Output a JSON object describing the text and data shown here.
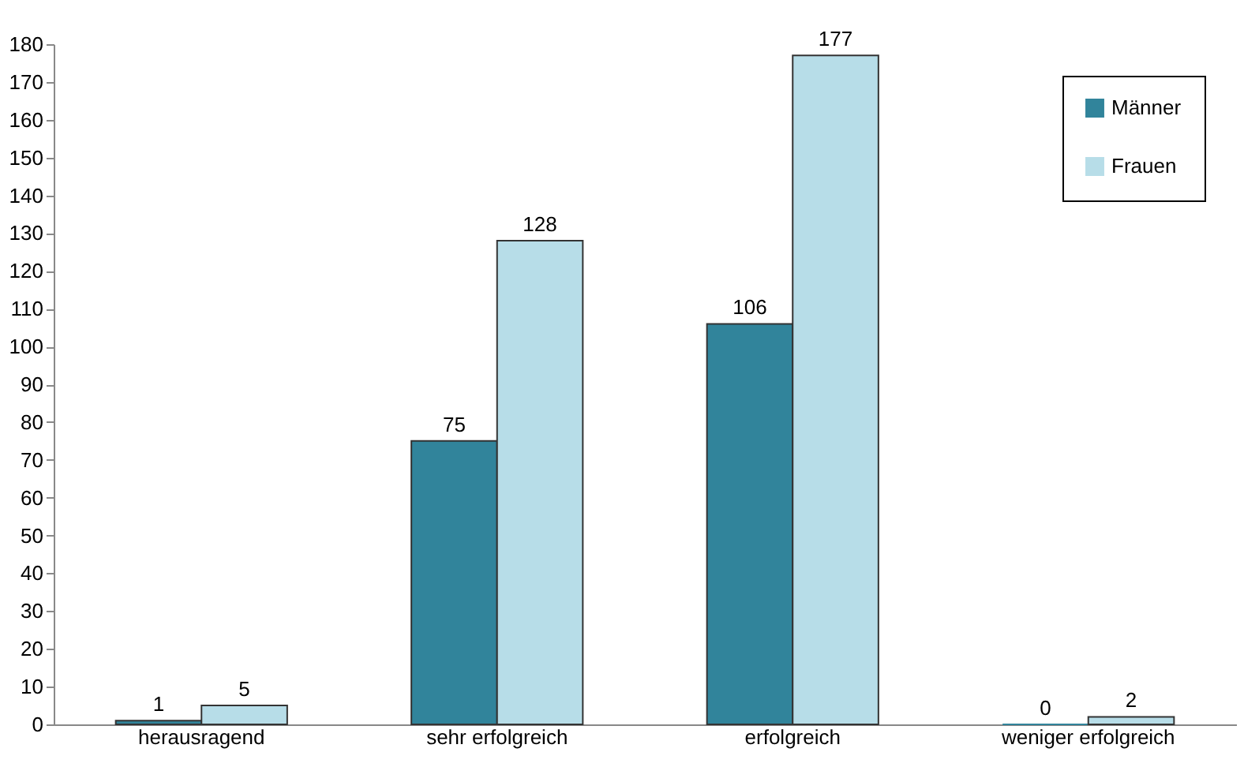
{
  "chart_data": {
    "type": "bar",
    "categories": [
      "herausragend",
      "sehr erfolgreich",
      "erfolgreich",
      "weniger erfolgreich"
    ],
    "series": [
      {
        "name": "Männer",
        "color": "#31849b",
        "values": [
          1,
          75,
          106,
          0
        ]
      },
      {
        "name": "Frauen",
        "color": "#b7dde8",
        "values": [
          5,
          128,
          177,
          2
        ]
      }
    ],
    "ylim": [
      0,
      180
    ],
    "yticks": [
      0,
      10,
      20,
      30,
      40,
      50,
      60,
      70,
      80,
      90,
      100,
      110,
      120,
      130,
      140,
      150,
      160,
      170,
      180
    ],
    "data_labels": true,
    "legend": "top right"
  }
}
